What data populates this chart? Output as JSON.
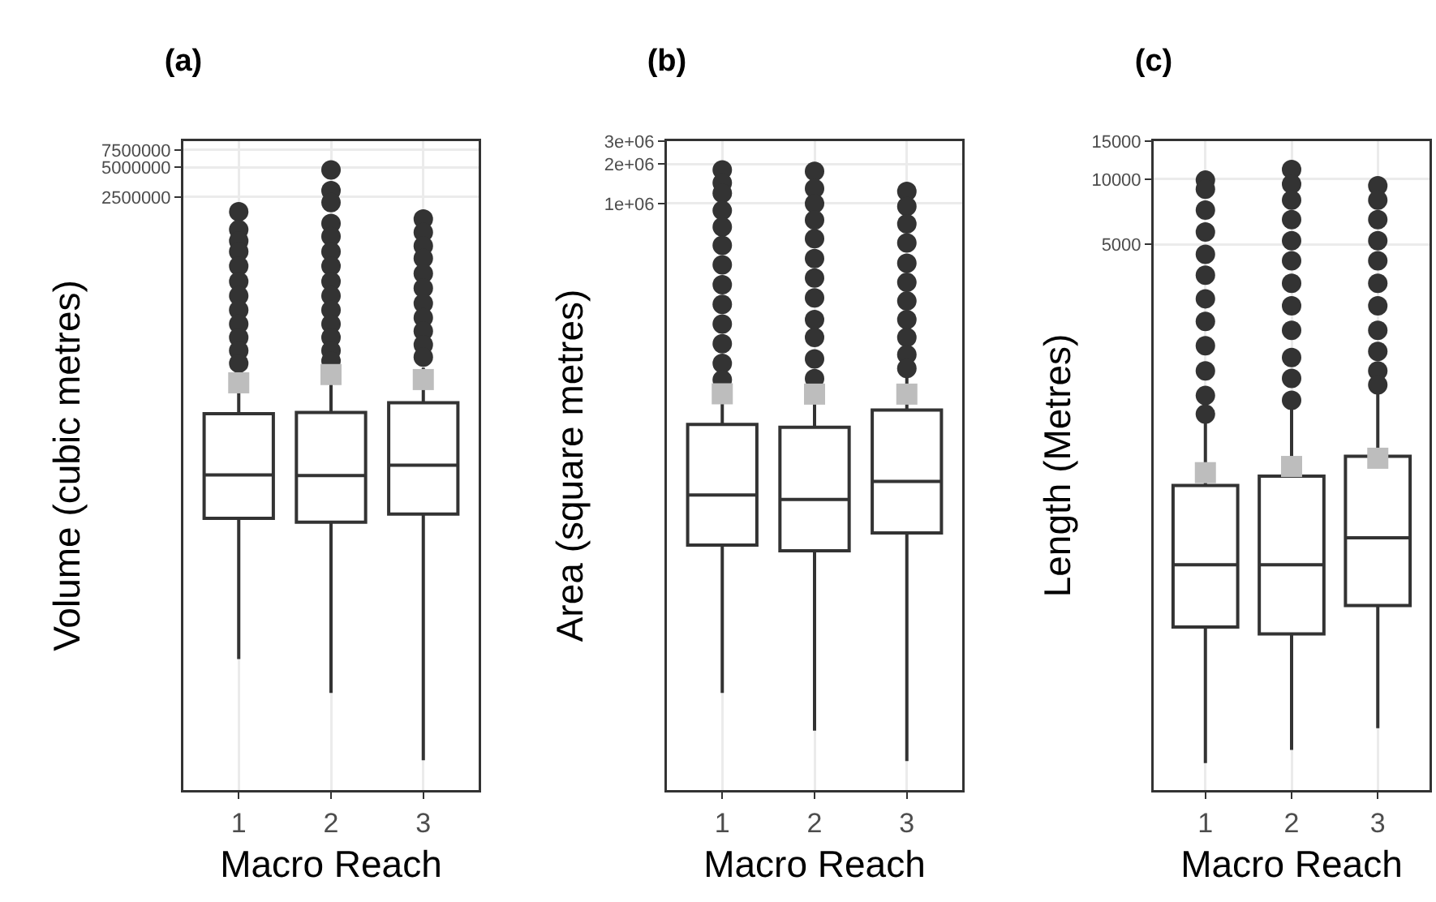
{
  "chart_data": [
    {
      "type": "box",
      "title": "(a)",
      "xlabel": "Macro Reach",
      "ylabel": "Volume (cubic metres)",
      "categories": [
        "1",
        "2",
        "3"
      ],
      "log": true,
      "grid": true,
      "ylim": [
        2.5,
        9200000
      ],
      "yticks": [
        2500000,
        5000000,
        7500000
      ],
      "series": [
        {
          "color": "#333333",
          "boxes": [
            {
              "low": 53,
              "q1": 1406,
              "median": 3855,
              "q3": 16070,
              "high": 41400,
              "mean": 33000,
              "outliers": [
                1780000,
                1170000,
                900000,
                700000,
                500000,
                350000,
                250000,
                180000,
                130000,
                95000,
                70000,
                52000
              ]
            },
            {
              "low": 24,
              "q1": 1285,
              "median": 3800,
              "q3": 16500,
              "high": 50000,
              "mean": 40000,
              "outliers": [
                4700000,
                2900000,
                2200000,
                1350000,
                1000000,
                700000,
                500000,
                350000,
                250000,
                180000,
                130000,
                95000,
                70000,
                55000
              ]
            },
            {
              "low": 5,
              "q1": 1550,
              "median": 4830,
              "q3": 20700,
              "high": 46900,
              "mean": 35600,
              "outliers": [
                1500000,
                1100000,
                800000,
                600000,
                420000,
                300000,
                210000,
                150000,
                110000,
                80000,
                60000
              ]
            }
          ]
        }
      ]
    },
    {
      "type": "box",
      "title": "(b)",
      "xlabel": "Macro Reach",
      "ylabel": "Area (square metres)",
      "categories": [
        "1",
        "2",
        "3"
      ],
      "log": true,
      "grid": true,
      "ylim": [
        33,
        3000000
      ],
      "yticks": [
        {
          "value": 1000000,
          "label": "1e+06"
        },
        {
          "value": 2000000,
          "label": "2e+06"
        },
        {
          "value": 3000000,
          "label": "3e+06"
        }
      ],
      "series": [
        {
          "color": "#333333",
          "boxes": [
            {
              "low": 182,
              "q1": 2460,
              "median": 5930,
              "q3": 20500,
              "high": 41800,
              "mean": 35200,
              "outliers": [
                1810000,
                1440000,
                1200000,
                885000,
                664000,
                480000,
                340000,
                240000,
                170000,
                120000,
                85000,
                60000,
                45000
              ]
            },
            {
              "low": 94,
              "q1": 2220,
              "median": 5480,
              "q3": 19500,
              "high": 42000,
              "mean": 35000,
              "outliers": [
                1760000,
                1300000,
                1000000,
                750000,
                540000,
                380000,
                270000,
                190000,
                130000,
                95000,
                65000,
                46000
              ]
            },
            {
              "low": 55,
              "q1": 3040,
              "median": 7520,
              "q3": 26400,
              "high": 50000,
              "mean": 35000,
              "outliers": [
                1240000,
                950000,
                700000,
                500000,
                350000,
                250000,
                180000,
                130000,
                95000,
                70000,
                55000
              ]
            }
          ]
        }
      ]
    },
    {
      "type": "box",
      "title": "(c)",
      "xlabel": "Macro Reach",
      "ylabel": "Length (Metres)",
      "categories": [
        "1",
        "2",
        "3"
      ],
      "log": true,
      "grid": true,
      "ylim": [
        15,
        15000
      ],
      "yticks": [
        5000,
        10000,
        15000
      ],
      "series": [
        {
          "color": "#333333",
          "boxes": [
            {
              "low": 20,
              "q1": 85,
              "median": 165,
              "q3": 384,
              "high": 776,
              "mean": 440,
              "outliers": [
                9900,
                9000,
                7200,
                5700,
                4500,
                3600,
                2800,
                2200,
                1700,
                1300,
                1000,
                820
              ]
            },
            {
              "low": 23,
              "q1": 79,
              "median": 165,
              "q3": 424,
              "high": 871,
              "mean": 470,
              "outliers": [
                11100,
                9500,
                8000,
                6500,
                5200,
                4200,
                3300,
                2600,
                2000,
                1500,
                1200,
                950
              ]
            },
            {
              "low": 29,
              "q1": 107,
              "median": 220,
              "q3": 524,
              "high": 1070,
              "mean": 513,
              "outliers": [
                9330,
                8000,
                6500,
                5200,
                4200,
                3300,
                2600,
                2000,
                1600,
                1300,
                1120
              ]
            }
          ]
        }
      ]
    }
  ]
}
